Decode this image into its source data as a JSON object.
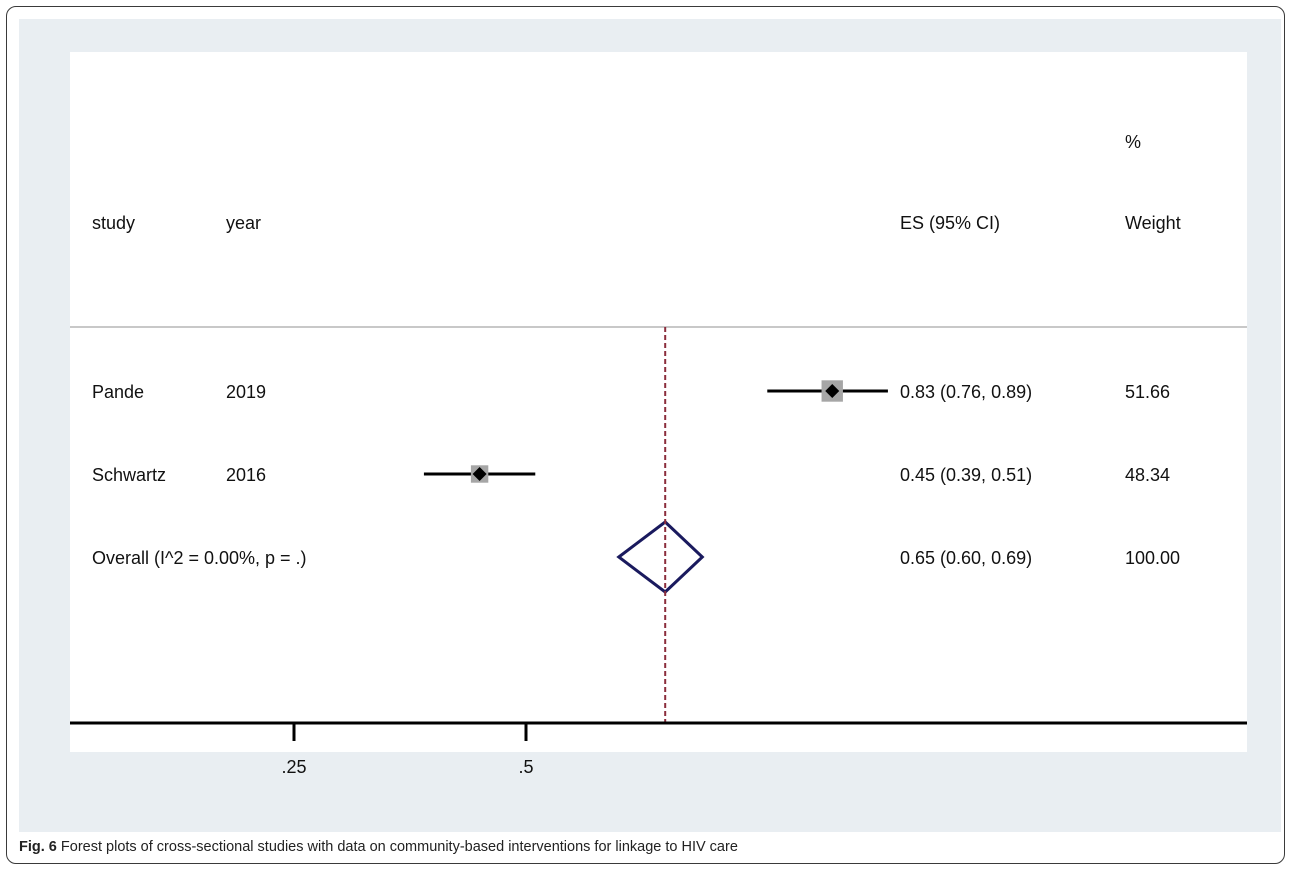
{
  "headers": {
    "study": "study",
    "year": "year",
    "es": "ES (95% CI)",
    "weight_pct": "%",
    "weight": "Weight"
  },
  "caption": {
    "label": "Fig. 6",
    "text": "Forest plots of cross-sectional studies with data on community-based interventions for linkage to HIV care"
  },
  "chart_data": {
    "type": "forest",
    "x_ticks": [
      {
        "value": 0.25,
        "label": ".25"
      },
      {
        "value": 0.5,
        "label": ".5"
      }
    ],
    "reference_line": 0.65,
    "studies": [
      {
        "study": "Pande",
        "year": "2019",
        "es": 0.83,
        "lo": 0.76,
        "hi": 0.89,
        "es_text": "0.83 (0.76, 0.89)",
        "weight": 51.66,
        "weight_text": "51.66"
      },
      {
        "study": "Schwartz",
        "year": "2016",
        "es": 0.45,
        "lo": 0.39,
        "hi": 0.51,
        "es_text": "0.45 (0.39, 0.51)",
        "weight": 48.34,
        "weight_text": "48.34"
      }
    ],
    "overall": {
      "label": "Overall  (I^2 = 0.00%, p = .)",
      "es": 0.65,
      "lo": 0.6,
      "hi": 0.69,
      "es_text": "0.65 (0.60, 0.69)",
      "weight_text": "100.00"
    },
    "colors": {
      "background": "#e9eef2",
      "plot": "#ffffff",
      "ci_line": "#000000",
      "weight_box": "#a6a6a6",
      "overall_diamond": "#1a1a5e",
      "reference_line": "#8b2d3c"
    }
  }
}
